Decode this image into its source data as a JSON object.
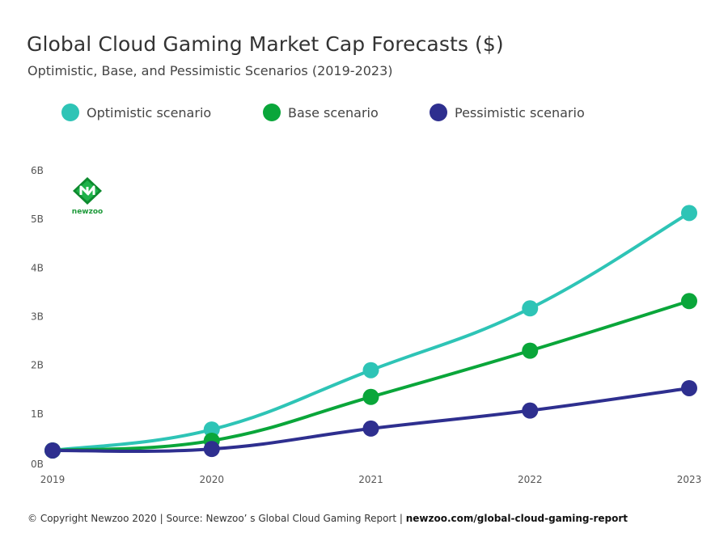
{
  "title": "Global Cloud Gaming Market Cap Forecasts ($)",
  "subtitle": "Optimistic, Base, and Pessimistic Scenarios (2019-2023)",
  "logo_text": "newzoo",
  "footer": {
    "prefix": "© Copyright Newzoo 2020 | Source: Newzoo’ s Global Cloud Gaming Report | ",
    "link": "newzoo.com/global-cloud-gaming-report"
  },
  "colors": {
    "optimistic": "#2ec4b6",
    "base": "#0aa63a",
    "pessimistic": "#2e2f8f",
    "axis_text": "#555555"
  },
  "chart_data": {
    "type": "line",
    "title": "Global Cloud Gaming Market Cap Forecasts ($)",
    "subtitle": "Optimistic, Base, and Pessimistic Scenarios (2019-2023)",
    "xlabel": "",
    "ylabel": "",
    "x": [
      "2019",
      "2020",
      "2021",
      "2022",
      "2023"
    ],
    "y_ticks": [
      "0B",
      "1B",
      "2B",
      "3B",
      "4B",
      "5B",
      "6B"
    ],
    "ylim": [
      0,
      6
    ],
    "grid": false,
    "legend_position": "top",
    "series": [
      {
        "key": "optimistic",
        "name": "Optimistic scenario",
        "values": [
          0.15,
          0.58,
          1.8,
          3.07,
          5.03
        ]
      },
      {
        "key": "base",
        "name": "Base scenario",
        "values": [
          0.15,
          0.35,
          1.25,
          2.2,
          3.22
        ]
      },
      {
        "key": "pessimistic",
        "name": "Pessimistic scenario",
        "values": [
          0.15,
          0.18,
          0.6,
          0.97,
          1.43
        ]
      }
    ]
  }
}
